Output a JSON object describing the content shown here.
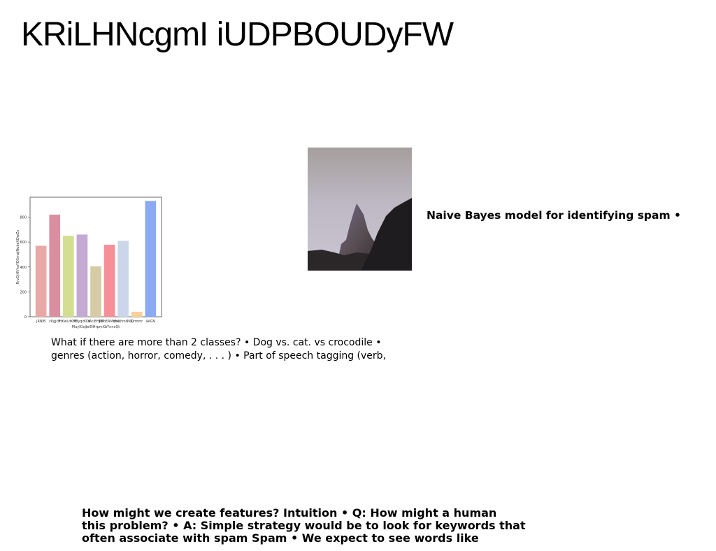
{
  "slide": {
    "title": "KRiLHNcgmI iUDPBOUDyFW",
    "spam_caption": "Naive Bayes model for identifying spam •",
    "classes_lines": [
      "What if there are more than 2 classes? • Dog vs. cat. vs crocodile •",
      "genres (action, horror, comedy, . . . ) • Part of speech tagging (verb,"
    ],
    "features_lines": [
      "How might we create features? Intuition • Q: How might a human",
      "this problem? • A: Simple strategy would be to look for keywords that",
      "often associate with spam Spam • We expect to see words like"
    ]
  },
  "chart_data": {
    "type": "bar",
    "categories": [
      "jRNIB",
      "cKgjcB",
      "HKwLdKHE",
      "PByqzKOk",
      "tAcIEHKB",
      "JWbEAMqNe",
      "HxXhmNNK",
      "Qrmmr",
      "iAIGN"
    ],
    "values": [
      570,
      820,
      650,
      660,
      405,
      578,
      610,
      40,
      930
    ],
    "colors": [
      "#e8a9a6",
      "#d98fa0",
      "#d4de90",
      "#c4a9d3",
      "#d7cba5",
      "#f78f99",
      "#ccd6ea",
      "#f8d09b",
      "#8baaf3"
    ],
    "xlabel": "MuylOxjbrEIHrpmXbYnncQt",
    "ylabel": "RrvDjHVhuYDSmaJNubeVDwZx",
    "ylim": [
      0,
      960
    ],
    "yticks": [
      0,
      200,
      400,
      600,
      800
    ]
  }
}
